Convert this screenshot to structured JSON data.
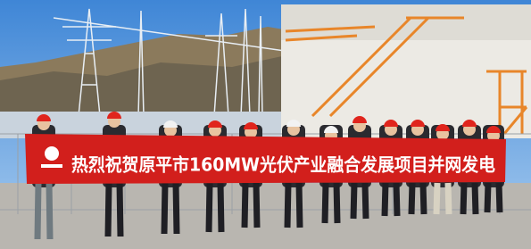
{
  "banner": {
    "text": "热烈祝贺原平市160MW光伏产业融合发展项目并网发电"
  }
}
